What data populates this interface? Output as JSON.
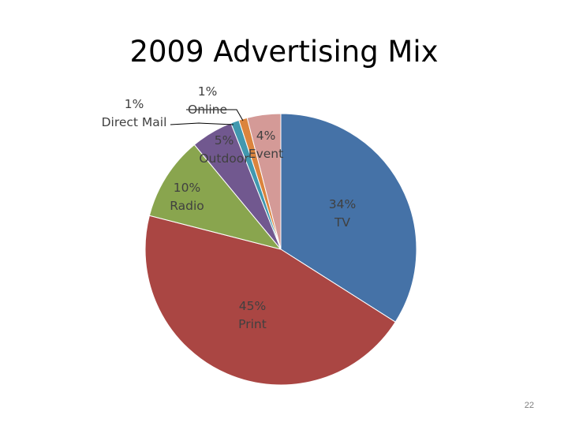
{
  "slide": {
    "title": "2009 Advertising Mix",
    "page_number": "22"
  },
  "chart_data": {
    "type": "pie",
    "title": "2009 Advertising Mix",
    "unit": "%",
    "slices": [
      {
        "label": "TV",
        "value": 34,
        "pct_text": "34%",
        "color": "#4572a7"
      },
      {
        "label": "Print",
        "value": 45,
        "pct_text": "45%",
        "color": "#aa4643"
      },
      {
        "label": "Radio",
        "value": 10,
        "pct_text": "10%",
        "color": "#89a54e"
      },
      {
        "label": "Outdoor",
        "value": 5,
        "pct_text": "5%",
        "color": "#71588f"
      },
      {
        "label": "Direct Mail",
        "value": 1,
        "pct_text": "1%",
        "color": "#4198af"
      },
      {
        "label": "Online",
        "value": 1,
        "pct_text": "1%",
        "color": "#db843d"
      },
      {
        "label": "Event",
        "value": 4,
        "pct_text": "4%",
        "color": "#d49a97"
      }
    ]
  }
}
